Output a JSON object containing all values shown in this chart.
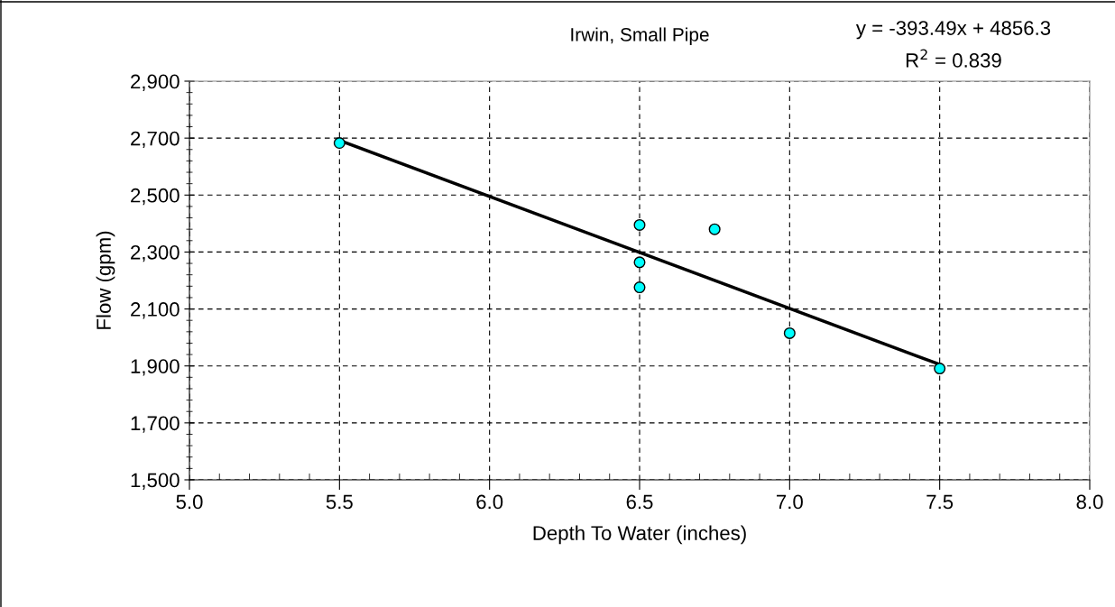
{
  "chart_data": {
    "type": "scatter",
    "title": "Irwin, Small Pipe",
    "xlabel": "Depth To Water (inches)",
    "ylabel": "Flow (gpm)",
    "xlim": [
      5.0,
      8.0
    ],
    "xticks": [
      {
        "value": 5.0,
        "label": "5.0"
      },
      {
        "value": 5.5,
        "label": "5.5"
      },
      {
        "value": 6.0,
        "label": "6.0"
      },
      {
        "value": 6.5,
        "label": "6.5"
      },
      {
        "value": 7.0,
        "label": "7.0"
      },
      {
        "value": 7.5,
        "label": "7.5"
      },
      {
        "value": 8.0,
        "label": "8.0"
      }
    ],
    "ylim": [
      1500,
      2900
    ],
    "yticks": [
      {
        "value": 1500,
        "label": "1,500"
      },
      {
        "value": 1700,
        "label": "1,700"
      },
      {
        "value": 1900,
        "label": "1,900"
      },
      {
        "value": 2100,
        "label": "2,100"
      },
      {
        "value": 2300,
        "label": "2,300"
      },
      {
        "value": 2500,
        "label": "2,500"
      },
      {
        "value": 2700,
        "label": "2,700"
      },
      {
        "value": 2900,
        "label": "2,900"
      }
    ],
    "grid": true,
    "legend": false,
    "series": [
      {
        "marker": "circle",
        "color": "#00ffff",
        "x": [
          5.5,
          6.5,
          6.5,
          6.5,
          6.75,
          7.0,
          7.5
        ],
        "values": [
          2683,
          2395,
          2264,
          2176,
          2380,
          2015,
          1891
        ]
      },
      {
        "type": "line",
        "line_style": "solid",
        "marker": "none",
        "color": "#000000",
        "x": [
          5.5,
          7.5
        ],
        "values": [
          2692,
          1905
        ]
      }
    ],
    "annotations": [
      "y = -393.49x + 4856.3",
      "R$^{2}$ = 0.839"
    ]
  }
}
